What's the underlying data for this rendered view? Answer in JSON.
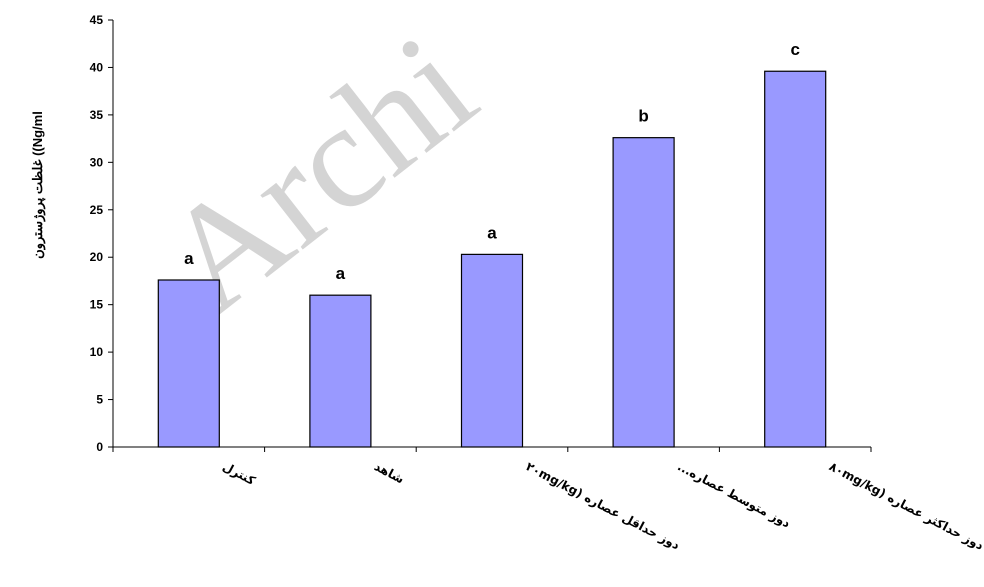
{
  "watermark": "Archi",
  "chart_data": {
    "type": "bar",
    "ylabel": "غلظت پروژسترون ((Ng/ml",
    "xlabel": "",
    "ylim": [
      0,
      45
    ],
    "yticks": [
      0,
      5,
      10,
      15,
      20,
      25,
      30,
      35,
      40,
      45
    ],
    "categories": [
      "کنترل",
      "شاهد",
      "دوز حداقل عصاره (۲۰mg/kg",
      "دوز متوسط عصاره...",
      "دوز حداکثر عصاره (۸۰mg/kg"
    ],
    "values": [
      17.6,
      16.0,
      20.3,
      32.6,
      39.6
    ],
    "significance": [
      "a",
      "a",
      "a",
      "b",
      "c"
    ],
    "bar_color": "#9999ff",
    "bar_edge": "#000000",
    "grid": false
  }
}
